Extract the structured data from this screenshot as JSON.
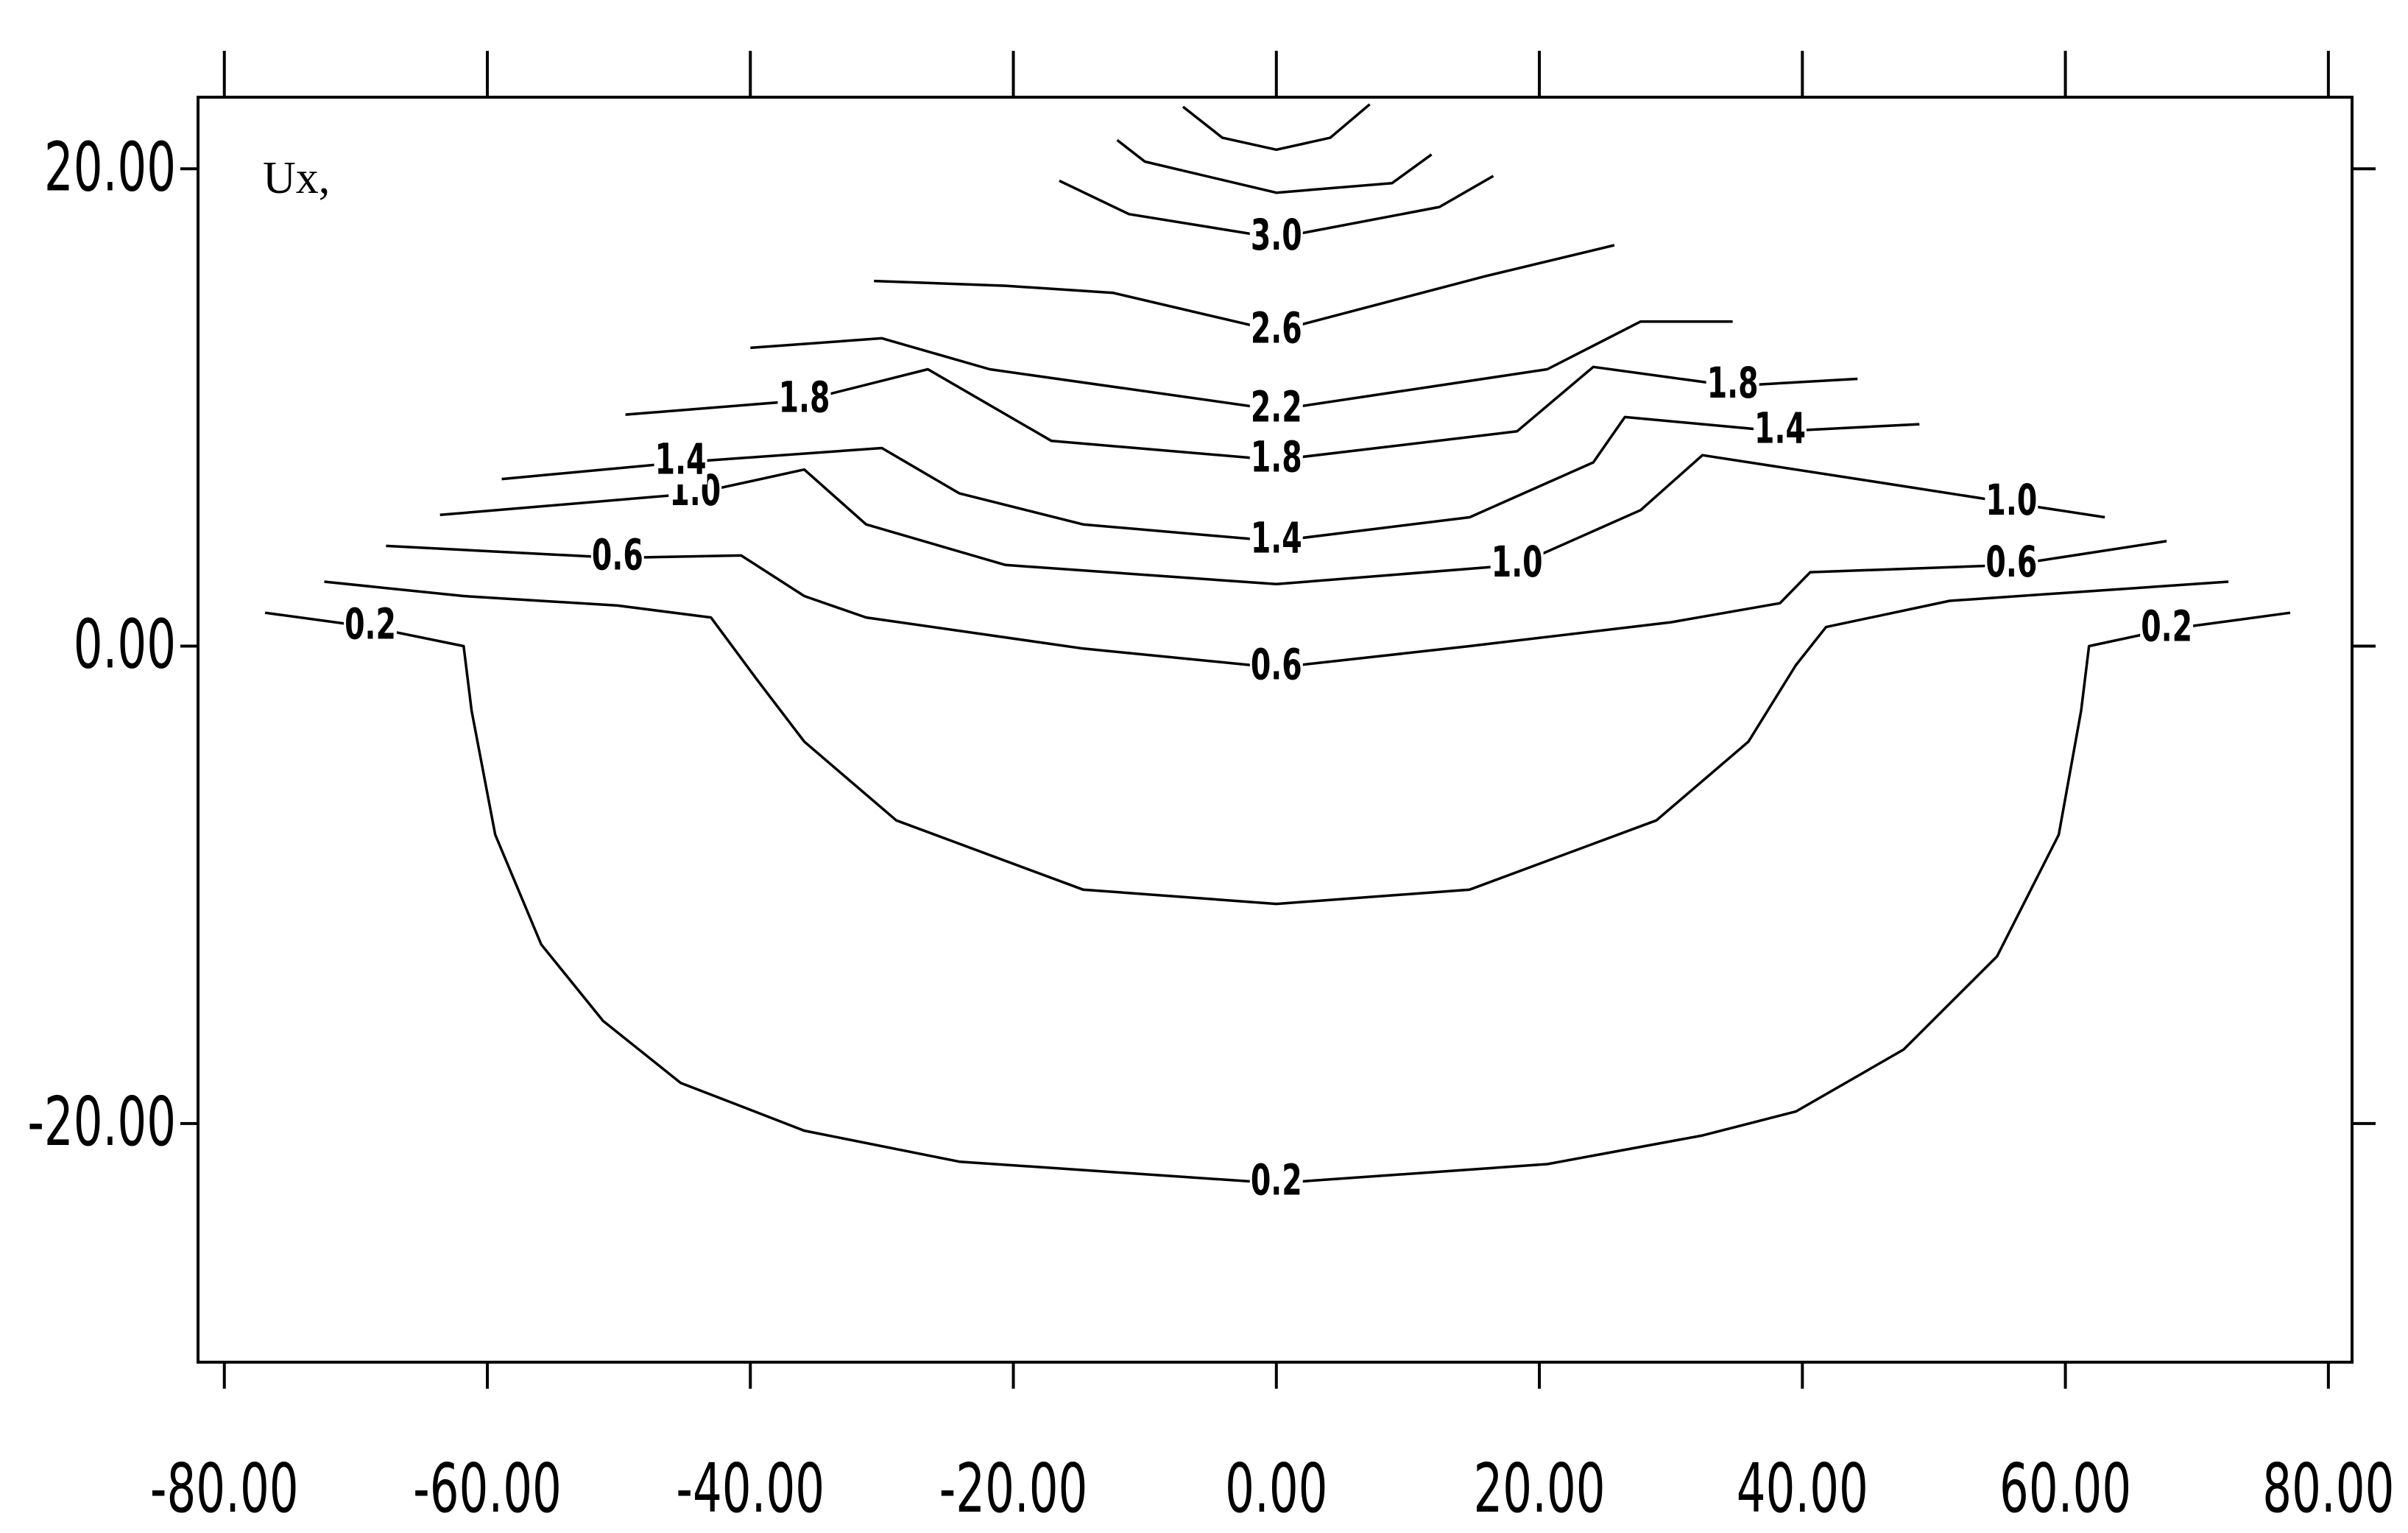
{
  "chart_data": {
    "type": "contour",
    "annotation": "Ux,",
    "xlim": [
      -82,
      81.8
    ],
    "ylim": [
      -30,
      23
    ],
    "xticks": [
      {
        "value": -80,
        "label": "-80.00"
      },
      {
        "value": -60,
        "label": "-60.00"
      },
      {
        "value": -40,
        "label": "-40.00"
      },
      {
        "value": -20,
        "label": "-20.00"
      },
      {
        "value": 0,
        "label": "0.00"
      },
      {
        "value": 20,
        "label": "20.00"
      },
      {
        "value": 40,
        "label": "40.00"
      },
      {
        "value": 60,
        "label": "60.00"
      },
      {
        "value": 80,
        "label": "80.00"
      }
    ],
    "yticks": [
      {
        "value": 20,
        "label": "20.00"
      },
      {
        "value": 0,
        "label": "0.00"
      },
      {
        "value": -20,
        "label": "-20.00"
      }
    ],
    "color": "#000000",
    "contours": [
      {
        "label": "0.2",
        "x": [
          -76.9,
          -68.9,
          -61.8,
          -61.2,
          -59.4,
          -55.9,
          -51.2,
          -45.3,
          -35.9,
          -24.1,
          0,
          20.6,
          32.4,
          39.5,
          47.7,
          54.8,
          59.5,
          61.2,
          61.8,
          67.7,
          77.1
        ],
        "y": [
          1.4,
          0.8,
          0,
          -2.7,
          -7.9,
          -12.5,
          -15.7,
          -18.3,
          -20.3,
          -21.6,
          -22.5,
          -21.7,
          -20.5,
          -19.5,
          -16.9,
          -13.0,
          -7.9,
          -2.7,
          0,
          0.7,
          1.4
        ]
      },
      {
        "x": [
          -72.4,
          -61.8,
          -50.1,
          -43.0,
          -39.5,
          -35.9,
          -28.9,
          -14.7,
          0,
          14.7,
          28.9,
          35.9,
          39.5,
          41.8,
          51.2,
          61.8,
          72.4
        ],
        "y": [
          2.7,
          2.1,
          1.7,
          1.2,
          -1.4,
          -4.0,
          -7.3,
          -10.2,
          -10.8,
          -10.2,
          -7.3,
          -4.0,
          -0.8,
          0.8,
          1.9,
          2.3,
          2.7
        ]
      },
      {
        "label": "0.6",
        "x": [
          -67.7,
          -50.1,
          -40.7,
          -35.9,
          -31.2,
          -14.7,
          0,
          14.7,
          30.0,
          38.3,
          40.6,
          55.9,
          67.7
        ],
        "y": [
          4.2,
          3.7,
          3.8,
          2.1,
          1.2,
          -0.1,
          -0.9,
          0,
          1.0,
          1.8,
          3.1,
          3.4,
          4.4
        ]
      },
      {
        "label": "1.0",
        "x": [
          -63.6,
          -44.2,
          -35.9,
          -31.2,
          -20.6,
          0,
          18.3,
          27.7,
          32.4,
          44.2,
          55.9,
          63.0
        ],
        "y": [
          5.5,
          6.4,
          7.4,
          5.1,
          3.4,
          2.6,
          3.4,
          5.7,
          8.0,
          7.0,
          6.0,
          5.4
        ]
      },
      {
        "label": "1.4",
        "x": [
          -58.9,
          -45.3,
          -30.0,
          -24.1,
          -14.7,
          0,
          14.7,
          24.1,
          26.5,
          38.3,
          48.9
        ],
        "y": [
          7.0,
          7.7,
          8.3,
          6.4,
          5.1,
          4.4,
          5.4,
          7.7,
          9.6,
          9.0,
          9.3
        ]
      },
      {
        "label": "1.8",
        "x": [
          -49.5,
          -35.9,
          -26.5,
          -17.1,
          0,
          18.3,
          24.1,
          34.7,
          44.2
        ],
        "y": [
          9.7,
          10.3,
          11.6,
          8.6,
          7.8,
          9.0,
          11.7,
          10.9,
          11.2
        ]
      },
      {
        "label": "2.2",
        "x": [
          -40.0,
          -30.0,
          -21.8,
          0,
          20.6,
          27.7,
          34.7
        ],
        "y": [
          12.5,
          12.9,
          11.6,
          9.9,
          11.6,
          13.6,
          13.6
        ]
      },
      {
        "label": "2.6",
        "x": [
          -30.6,
          -20.6,
          -12.4,
          0,
          15.9,
          25.7
        ],
        "y": [
          15.3,
          15.1,
          14.8,
          13.2,
          15.5,
          16.8
        ]
      },
      {
        "label": "3.0",
        "x": [
          -16.5,
          -11.2,
          0,
          12.4,
          16.5
        ],
        "y": [
          19.5,
          18.1,
          17.1,
          18.4,
          19.7
        ]
      },
      {
        "x": [
          -12.1,
          -10.0,
          0,
          8.8,
          11.8
        ],
        "y": [
          21.2,
          20.3,
          19.0,
          19.4,
          20.6
        ]
      },
      {
        "x": [
          -7.1,
          -4.1,
          0,
          4.1,
          7.1
        ],
        "y": [
          22.6,
          21.3,
          20.8,
          21.3,
          22.7
        ]
      }
    ]
  }
}
